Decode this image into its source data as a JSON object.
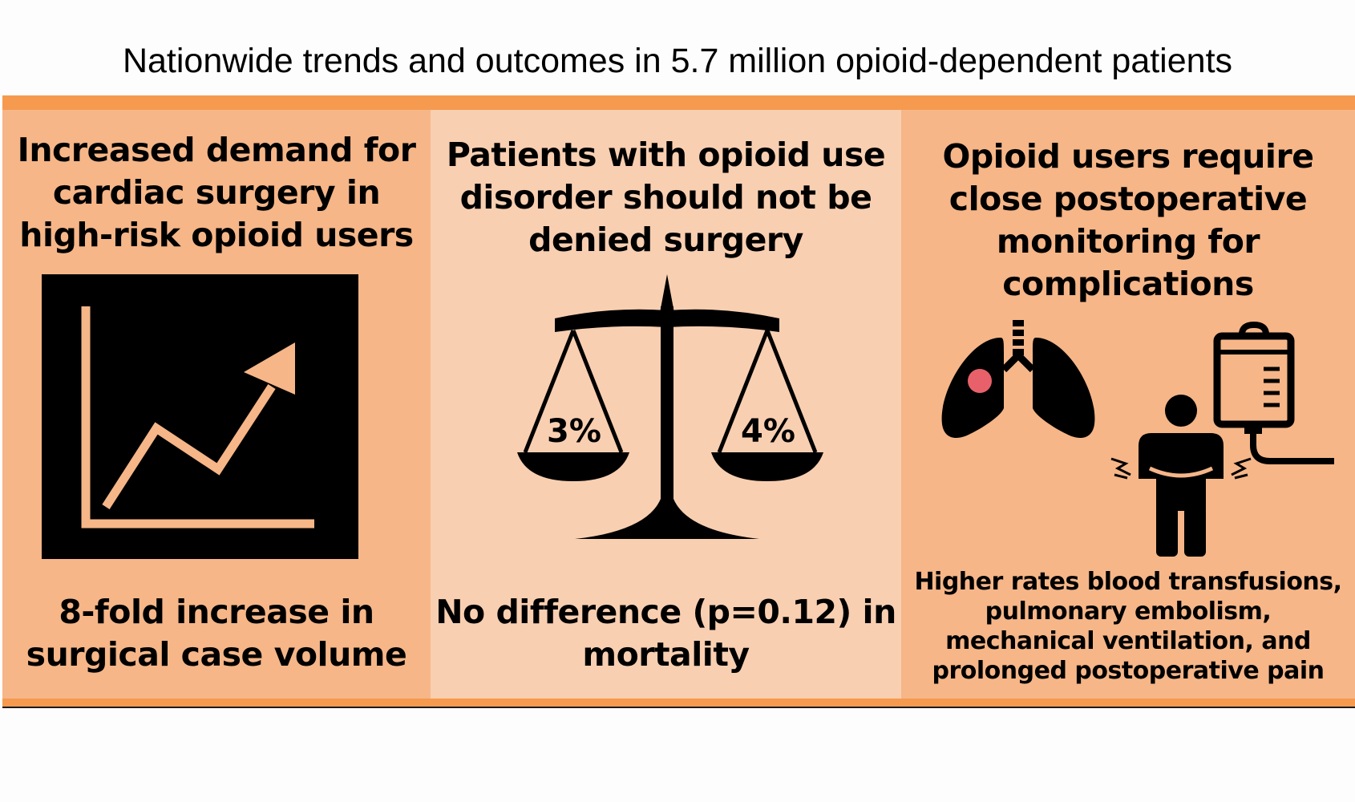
{
  "title": "Nationwide trends and outcomes in 5.7 million opioid-dependent patients",
  "colors": {
    "bar": "#f59a4f",
    "panel_left": "#f6b688",
    "panel_middle": "#f9cfb1",
    "panel_right": "#f6b688",
    "chart_bg": "#000000",
    "chart_line": "#f6b688",
    "lesion": "#e8616a"
  },
  "panels": [
    {
      "heading": "Increased demand for cardiac surgery in high-risk opioid users",
      "icon": "trend-up-chart-icon",
      "caption": "8-fold increase in surgical case volume"
    },
    {
      "heading": "Patients with opioid use disorder should not be denied surgery",
      "icon": "balance-scale-icon",
      "scale_left": "3%",
      "scale_right": "4%",
      "caption": "No difference (p=0.12) in mortality"
    },
    {
      "heading": "Opioid users require close postoperative monitoring for complications",
      "icons": [
        "lungs-icon",
        "person-in-pain-icon",
        "iv-bag-icon"
      ],
      "caption": "Higher rates blood transfusions, pulmonary embolism, mechanical ventilation, and prolonged postoperative pain"
    }
  ]
}
